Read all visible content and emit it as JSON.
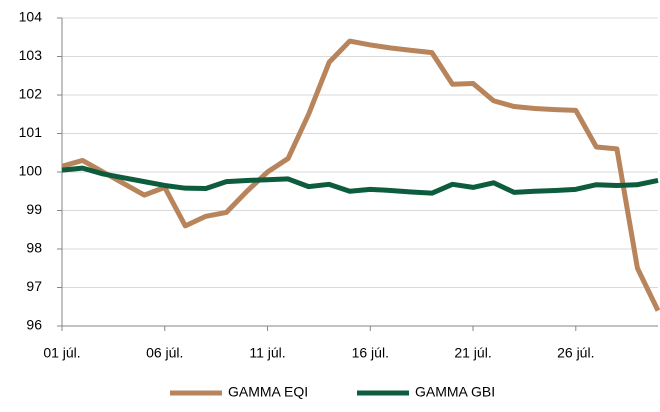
{
  "chart_data": {
    "type": "line",
    "categories": [
      "01 júl.",
      null,
      null,
      null,
      null,
      "06 júl.",
      null,
      null,
      null,
      null,
      "11 júl.",
      null,
      null,
      null,
      null,
      "16 júl.",
      null,
      null,
      null,
      null,
      "21 júl.",
      null,
      null,
      null,
      null,
      "26 júl.",
      null,
      null,
      null,
      null
    ],
    "series": [
      {
        "name": "GAMMA EQI",
        "color": "#b8845b",
        "values": [
          100.15,
          100.3,
          100.0,
          99.7,
          99.4,
          99.6,
          98.6,
          98.85,
          98.95,
          99.5,
          100.0,
          100.35,
          101.5,
          102.85,
          103.4,
          103.3,
          103.22,
          103.16,
          103.1,
          102.28,
          102.3,
          101.85,
          101.7,
          101.65,
          101.62,
          101.6,
          100.65,
          100.6,
          97.5,
          96.4
        ]
      },
      {
        "name": "GAMMA GBI",
        "color": "#0d5c3d",
        "values": [
          100.05,
          100.1,
          99.95,
          99.85,
          99.75,
          99.65,
          99.58,
          99.57,
          99.75,
          99.78,
          99.8,
          99.82,
          99.62,
          99.68,
          99.5,
          99.55,
          99.52,
          99.48,
          99.45,
          99.68,
          99.6,
          99.72,
          99.47,
          99.5,
          99.52,
          99.55,
          99.67,
          99.65,
          99.67,
          99.78
        ]
      }
    ],
    "ylim": [
      96,
      104
    ],
    "yticks": [
      96,
      97,
      98,
      99,
      100,
      101,
      102,
      103,
      104
    ],
    "grid": true
  }
}
